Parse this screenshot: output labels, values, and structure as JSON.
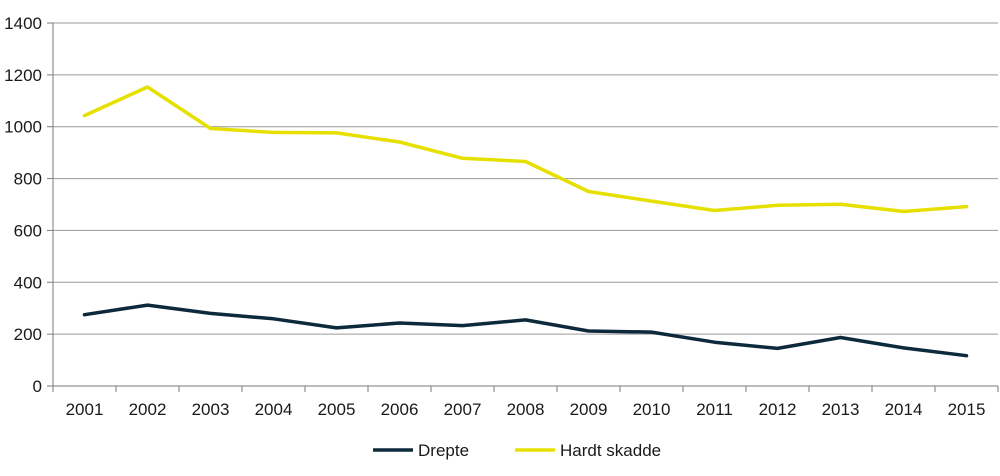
{
  "chart_data": {
    "type": "line",
    "title": "",
    "xlabel": "",
    "ylabel": "",
    "categories": [
      "2001",
      "2002",
      "2003",
      "2004",
      "2005",
      "2006",
      "2007",
      "2008",
      "2009",
      "2010",
      "2011",
      "2012",
      "2013",
      "2014",
      "2015"
    ],
    "ylim": [
      0,
      1400
    ],
    "yticks": [
      0,
      200,
      400,
      600,
      800,
      1000,
      1200,
      1400
    ],
    "grid": true,
    "legend_position": "bottom",
    "series": [
      {
        "name": "Drepte",
        "color": "#0d2a3d",
        "values": [
          275,
          312,
          280,
          259,
          224,
          243,
          233,
          255,
          212,
          208,
          169,
          145,
          187,
          147,
          117
        ]
      },
      {
        "name": "Hardt skadde",
        "color": "#e6e000",
        "values": [
          1043,
          1153,
          993,
          978,
          976,
          941,
          878,
          866,
          750,
          713,
          677,
          697,
          701,
          673,
          692
        ]
      }
    ]
  }
}
